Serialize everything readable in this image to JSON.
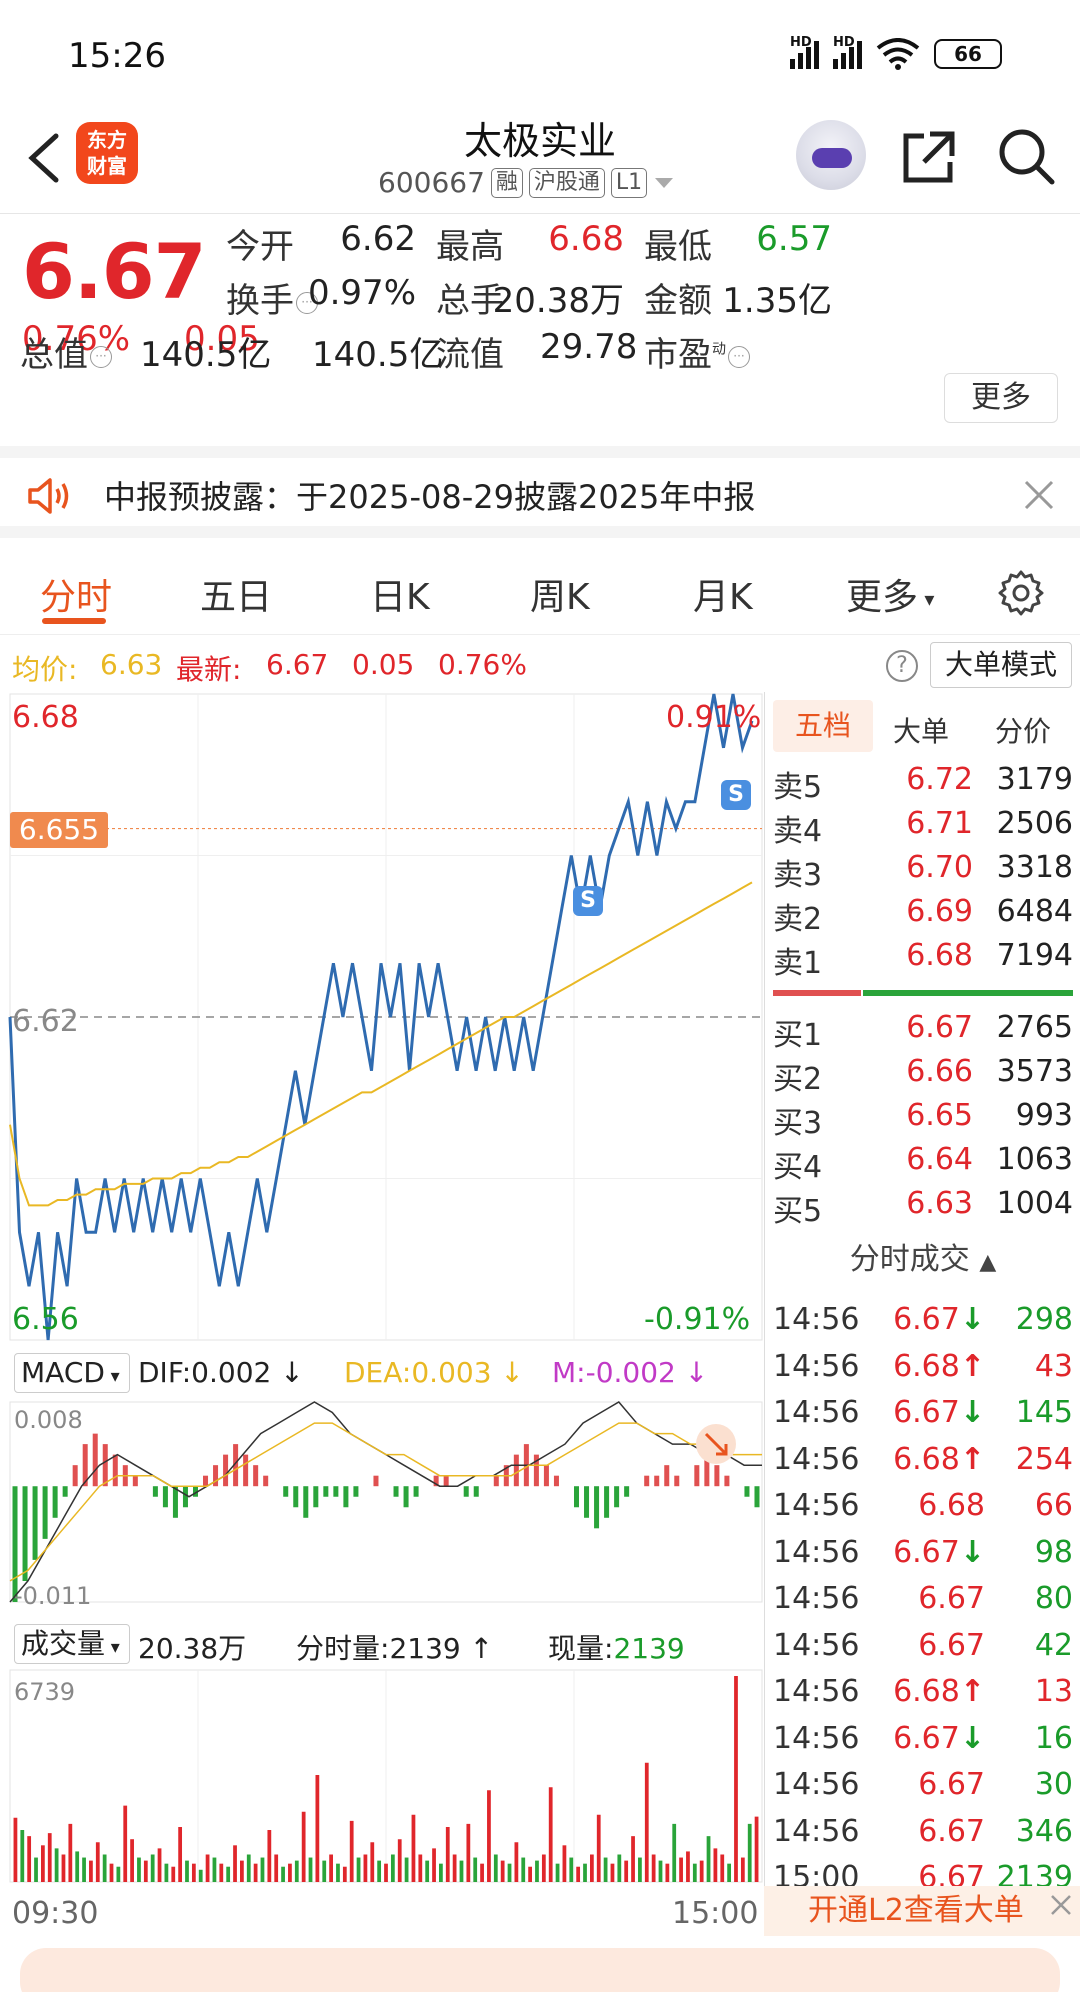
{
  "status_bar": {
    "time": "15:26",
    "battery": "66",
    "hd1": "HD",
    "hd2": "HD"
  },
  "header": {
    "logo_line1": "东方",
    "logo_line2": "财富",
    "stock_name": "太极实业",
    "stock_code": "600667",
    "tag_margin": "融",
    "tag_connect": "沪股通",
    "tag_level": "L1"
  },
  "quote": {
    "price": "6.67",
    "change_pct": "0.76%",
    "change_amt": "0.05",
    "fields": [
      {
        "label": "今开",
        "value": "6.62",
        "color": "#222222"
      },
      {
        "label": "最高",
        "value": "6.68",
        "color": "#e0262b"
      },
      {
        "label": "最低",
        "value": "6.57",
        "color": "#1a9b2a"
      },
      {
        "label": "换手",
        "value": "0.97%",
        "color": "#222222"
      },
      {
        "label": "总手",
        "value": "20.38万",
        "color": "#222222"
      },
      {
        "label": "金额",
        "value": "1.35亿",
        "color": "#222222"
      },
      {
        "label": "总值",
        "value": "140.5亿",
        "color": "#222222"
      },
      {
        "label": "流值",
        "value": "140.5亿",
        "color": "#222222"
      },
      {
        "label": "市盈",
        "value": "29.78",
        "color": "#222222"
      }
    ],
    "pe_superscript": "动",
    "more_label": "更多"
  },
  "notice": {
    "text": "中报预披露：于2025-08-29披露2025年中报"
  },
  "tabs": [
    "分时",
    "五日",
    "日K",
    "周K",
    "月K",
    "更多"
  ],
  "avg_row": {
    "avg_label": "均价:",
    "avg_value": "6.63",
    "latest_label": "最新:",
    "latest_value": "6.67",
    "latest_chg": "0.05",
    "latest_pct": "0.76%",
    "help": "?",
    "big_order_mode": "大单模式"
  },
  "chart_data": {
    "type": "line",
    "y_max_label": "6.68",
    "y_mid_label": "6.62",
    "y_min_label": "6.56",
    "pct_max_label": "0.91%",
    "pct_min_label": "-0.91%",
    "cursor_label": "6.655",
    "x_start": "09:30",
    "x_end": "15:00",
    "ylim": [
      6.56,
      6.68
    ],
    "prev_close": 6.62,
    "s_marker": "S",
    "price_series": [
      6.62,
      6.58,
      6.57,
      6.58,
      6.56,
      6.58,
      6.57,
      6.59,
      6.58,
      6.58,
      6.59,
      6.58,
      6.59,
      6.58,
      6.59,
      6.58,
      6.59,
      6.58,
      6.59,
      6.58,
      6.59,
      6.58,
      6.57,
      6.58,
      6.57,
      6.58,
      6.59,
      6.58,
      6.59,
      6.6,
      6.61,
      6.6,
      6.61,
      6.62,
      6.63,
      6.62,
      6.63,
      6.62,
      6.61,
      6.63,
      6.62,
      6.63,
      6.61,
      6.63,
      6.62,
      6.63,
      6.62,
      6.61,
      6.62,
      6.61,
      6.62,
      6.61,
      6.62,
      6.61,
      6.62,
      6.61,
      6.62,
      6.63,
      6.64,
      6.65,
      6.64,
      6.65,
      6.64,
      6.65,
      6.655,
      6.66,
      6.65,
      6.66,
      6.65,
      6.66,
      6.655,
      6.66,
      6.66,
      6.67,
      6.68,
      6.67,
      6.68,
      6.67,
      6.675
    ],
    "avg_series": [
      6.6,
      6.59,
      6.585,
      6.585,
      6.585,
      6.586,
      6.586,
      6.587,
      6.587,
      6.588,
      6.588,
      6.588,
      6.589,
      6.589,
      6.589,
      6.59,
      6.59,
      6.59,
      6.591,
      6.591,
      6.592,
      6.592,
      6.593,
      6.593,
      6.594,
      6.594,
      6.595,
      6.596,
      6.597,
      6.598,
      6.599,
      6.6,
      6.601,
      6.602,
      6.603,
      6.604,
      6.605,
      6.606,
      6.606,
      6.607,
      6.608,
      6.609,
      6.61,
      6.611,
      6.612,
      6.613,
      6.614,
      6.615,
      6.616,
      6.617,
      6.618,
      6.619,
      6.62,
      6.62,
      6.621,
      6.622,
      6.623,
      6.624,
      6.625,
      6.626,
      6.627,
      6.628,
      6.629,
      6.63,
      6.631,
      6.632,
      6.633,
      6.634,
      6.635,
      6.636,
      6.637,
      6.638,
      6.639,
      6.64,
      6.641,
      6.642,
      6.643,
      6.644,
      6.645
    ]
  },
  "macd": {
    "label": "MACD",
    "dif": "DIF:0.002",
    "dea": "DEA:0.003",
    "m": "M:-0.002",
    "top_label": "0.008",
    "bottom_label": "-0.011",
    "hist": [
      -0.011,
      -0.009,
      -0.007,
      -0.005,
      -0.003,
      -0.001,
      0.002,
      0.004,
      0.005,
      0.004,
      0.003,
      0.002,
      0.001,
      0.0,
      -0.001,
      -0.002,
      -0.003,
      -0.002,
      -0.001,
      0.001,
      0.002,
      0.003,
      0.004,
      0.003,
      0.002,
      0.001,
      0.0,
      -0.001,
      -0.002,
      -0.003,
      -0.002,
      -0.001,
      -0.001,
      -0.002,
      -0.001,
      0.0,
      0.001,
      0.0,
      -0.001,
      -0.002,
      -0.001,
      0.0,
      0.001,
      0.001,
      0.0,
      -0.001,
      -0.001,
      0.0,
      0.001,
      0.002,
      0.003,
      0.004,
      0.003,
      0.002,
      0.001,
      0.0,
      -0.002,
      -0.003,
      -0.004,
      -0.003,
      -0.002,
      -0.001,
      0.0,
      0.001,
      0.001,
      0.002,
      0.001,
      0.0,
      0.002,
      0.003,
      0.002,
      0.001,
      0.0,
      -0.001,
      -0.002
    ],
    "dif_series": [
      -0.011,
      -0.009,
      -0.006,
      -0.003,
      0.0,
      0.002,
      0.003,
      0.002,
      0.001,
      0.0,
      -0.001,
      0.0,
      0.001,
      0.003,
      0.005,
      0.006,
      0.007,
      0.008,
      0.007,
      0.005,
      0.004,
      0.003,
      0.002,
      0.001,
      0.0,
      0.0,
      0.001,
      0.001,
      0.002,
      0.002,
      0.003,
      0.004,
      0.006,
      0.007,
      0.008,
      0.006,
      0.005,
      0.004,
      0.004,
      0.003,
      0.003,
      0.002,
      0.002
    ],
    "dea_series": [
      -0.009,
      -0.008,
      -0.006,
      -0.004,
      -0.002,
      0.0,
      0.001,
      0.001,
      0.001,
      0.0,
      0.0,
      0.0,
      0.001,
      0.002,
      0.003,
      0.004,
      0.005,
      0.006,
      0.006,
      0.005,
      0.004,
      0.003,
      0.003,
      0.002,
      0.001,
      0.001,
      0.001,
      0.001,
      0.001,
      0.002,
      0.002,
      0.003,
      0.004,
      0.005,
      0.006,
      0.006,
      0.005,
      0.005,
      0.004,
      0.004,
      0.003,
      0.003,
      0.003
    ]
  },
  "volume": {
    "label": "成交量",
    "total": "20.38万",
    "minute_vol_label": "分时量:",
    "minute_vol": "2139",
    "current_vol_label": "现量:",
    "current_vol": "2139",
    "max_label": "6739",
    "bars": [
      2100,
      1700,
      1500,
      800,
      1200,
      1600,
      1100,
      900,
      1900,
      1000,
      800,
      700,
      1300,
      900,
      600,
      500,
      2500,
      1400,
      800,
      700,
      900,
      1100,
      600,
      500,
      1800,
      700,
      600,
      400,
      900,
      800,
      600,
      500,
      1200,
      700,
      900,
      600,
      800,
      1700,
      900,
      500,
      600,
      700,
      2300,
      800,
      3500,
      700,
      900,
      600,
      500,
      2000,
      800,
      900,
      1300,
      700,
      600,
      900,
      1400,
      800,
      2200,
      900,
      700,
      1100,
      600,
      1800,
      900,
      700,
      1900,
      800,
      600,
      3000,
      900,
      700,
      600,
      1300,
      800,
      500,
      700,
      900,
      3100,
      600,
      1200,
      800,
      500,
      600,
      900,
      2200,
      800,
      600,
      900,
      700,
      1500,
      800,
      3900,
      900,
      700,
      600,
      1900,
      800,
      1000,
      600,
      700,
      1500,
      1100,
      900,
      600,
      6739,
      800,
      1900,
      2139
    ],
    "bar_colors": [
      "r",
      "g",
      "r",
      "g",
      "r",
      "r",
      "g",
      "r",
      "r",
      "g",
      "g",
      "r",
      "r",
      "g",
      "r",
      "g",
      "r",
      "r",
      "g",
      "r",
      "g",
      "r",
      "g",
      "r",
      "r",
      "g",
      "r",
      "g",
      "r",
      "g",
      "r",
      "g",
      "r",
      "r",
      "g",
      "r",
      "g",
      "r",
      "r",
      "g",
      "r",
      "g",
      "r",
      "g",
      "r",
      "g",
      "r",
      "g",
      "r",
      "r",
      "g",
      "r",
      "r",
      "g",
      "r",
      "g",
      "r",
      "g",
      "r",
      "r",
      "g",
      "r",
      "g",
      "r",
      "r",
      "g",
      "r",
      "g",
      "r",
      "r",
      "g",
      "r",
      "g",
      "r",
      "g",
      "r",
      "g",
      "r",
      "r",
      "g",
      "r",
      "g",
      "r",
      "g",
      "r",
      "r",
      "g",
      "r",
      "g",
      "r",
      "r",
      "g",
      "r",
      "r",
      "g",
      "r",
      "g",
      "r",
      "r",
      "g",
      "r",
      "g",
      "r",
      "r",
      "g",
      "r",
      "r",
      "g",
      "r"
    ]
  },
  "right_panel": {
    "tabs": [
      "五档",
      "大单",
      "分价"
    ],
    "asks": [
      {
        "label": "卖5",
        "price": "6.72",
        "vol": "3179"
      },
      {
        "label": "卖4",
        "price": "6.71",
        "vol": "2506"
      },
      {
        "label": "卖3",
        "price": "6.70",
        "vol": "3318"
      },
      {
        "label": "卖2",
        "price": "6.69",
        "vol": "6484"
      },
      {
        "label": "卖1",
        "price": "6.68",
        "vol": "7194"
      }
    ],
    "bids": [
      {
        "label": "买1",
        "price": "6.67",
        "vol": "2765"
      },
      {
        "label": "买2",
        "price": "6.66",
        "vol": "3573"
      },
      {
        "label": "买3",
        "price": "6.65",
        "vol": "993"
      },
      {
        "label": "买4",
        "price": "6.64",
        "vol": "1063"
      },
      {
        "label": "买5",
        "price": "6.63",
        "vol": "1004"
      }
    ],
    "deals_title": "分时成交",
    "deals": [
      {
        "time": "14:56",
        "price": "6.67",
        "arrow": "↓",
        "vol": "298",
        "pc": "red",
        "vc": "green"
      },
      {
        "time": "14:56",
        "price": "6.68",
        "arrow": "↑",
        "vol": "43",
        "pc": "red",
        "vc": "red"
      },
      {
        "time": "14:56",
        "price": "6.67",
        "arrow": "↓",
        "vol": "145",
        "pc": "red",
        "vc": "green"
      },
      {
        "time": "14:56",
        "price": "6.68",
        "arrow": "↑",
        "vol": "254",
        "pc": "red",
        "vc": "red"
      },
      {
        "time": "14:56",
        "price": "6.68",
        "arrow": "",
        "vol": "66",
        "pc": "red",
        "vc": "red"
      },
      {
        "time": "14:56",
        "price": "6.67",
        "arrow": "↓",
        "vol": "98",
        "pc": "red",
        "vc": "green"
      },
      {
        "time": "14:56",
        "price": "6.67",
        "arrow": "",
        "vol": "80",
        "pc": "red",
        "vc": "green"
      },
      {
        "time": "14:56",
        "price": "6.67",
        "arrow": "",
        "vol": "42",
        "pc": "red",
        "vc": "green"
      },
      {
        "time": "14:56",
        "price": "6.68",
        "arrow": "↑",
        "vol": "13",
        "pc": "red",
        "vc": "red"
      },
      {
        "time": "14:56",
        "price": "6.67",
        "arrow": "↓",
        "vol": "16",
        "pc": "red",
        "vc": "green"
      },
      {
        "time": "14:56",
        "price": "6.67",
        "arrow": "",
        "vol": "30",
        "pc": "red",
        "vc": "green"
      },
      {
        "time": "14:56",
        "price": "6.67",
        "arrow": "",
        "vol": "346",
        "pc": "red",
        "vc": "green"
      },
      {
        "time": "15:00",
        "price": "6.67",
        "arrow": "",
        "vol": "2139",
        "pc": "red",
        "vc": "green"
      }
    ],
    "l2_banner": "开通L2查看大单"
  },
  "bottom_ad": {
    "text": " "
  },
  "colors": {
    "accent": "#e8541e",
    "up": "#e0262b",
    "down": "#1a9b2a",
    "line": "#2f6bb0",
    "avg": "#e9b824"
  }
}
